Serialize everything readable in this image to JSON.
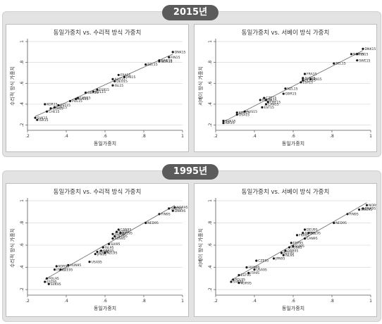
{
  "sections": [
    {
      "year_label": "2015년"
    },
    {
      "year_label": "1995년"
    }
  ],
  "chart_data": [
    {
      "type": "scatter",
      "title": "동일가중치 vs. 수리적 방식 가중치",
      "xlabel": "동일가중치",
      "ylabel": "수리적 방식 가중치",
      "xlim": [
        0.2,
        1.0
      ],
      "ylim": [
        0.15,
        1.0
      ],
      "xticks": [
        ".2",
        ".4",
        ".6",
        ".8",
        "1"
      ],
      "yticks": [
        ".2",
        ".4",
        ".6",
        ".8",
        "1"
      ],
      "grid": true,
      "fit_line": true,
      "points": [
        {
          "label": "DNK15",
          "x": 0.95,
          "y": 0.9
        },
        {
          "label": "FIN15",
          "x": 0.93,
          "y": 0.85
        },
        {
          "label": "NOR15",
          "x": 0.88,
          "y": 0.81
        },
        {
          "label": "SWE15",
          "x": 0.88,
          "y": 0.82
        },
        {
          "label": "BEL15",
          "x": 0.81,
          "y": 0.78
        },
        {
          "label": "FRA15",
          "x": 0.67,
          "y": 0.68
        },
        {
          "label": "AUT15",
          "x": 0.64,
          "y": 0.64
        },
        {
          "label": "JPN15",
          "x": 0.7,
          "y": 0.66
        },
        {
          "label": "DEU15",
          "x": 0.65,
          "y": 0.62
        },
        {
          "label": "ISL15",
          "x": 0.64,
          "y": 0.58
        },
        {
          "label": "ESP15",
          "x": 0.56,
          "y": 0.54
        },
        {
          "label": "NZL15",
          "x": 0.54,
          "y": 0.52
        },
        {
          "label": "GBR15",
          "x": 0.5,
          "y": 0.51
        },
        {
          "label": "CAN15",
          "x": 0.46,
          "y": 0.46
        },
        {
          "label": "AUS15",
          "x": 0.45,
          "y": 0.45
        },
        {
          "label": "POL15",
          "x": 0.42,
          "y": 0.43
        },
        {
          "label": "EST15",
          "x": 0.36,
          "y": 0.39
        },
        {
          "label": "CZE15",
          "x": 0.34,
          "y": 0.37
        },
        {
          "label": "USA15",
          "x": 0.32,
          "y": 0.36
        },
        {
          "label": "KOR15",
          "x": 0.29,
          "y": 0.4
        },
        {
          "label": "CHE15",
          "x": 0.3,
          "y": 0.33
        },
        {
          "label": "SVK15",
          "x": 0.24,
          "y": 0.27
        },
        {
          "label": "ISR15",
          "x": 0.25,
          "y": 0.25
        }
      ]
    },
    {
      "type": "scatter",
      "title": "동일가중치 vs. 서베이 방식 가중치",
      "xlabel": "동일가중치",
      "ylabel": "서베이 방식 가중치",
      "xlim": [
        0.2,
        1.0
      ],
      "ylim": [
        0.15,
        1.0
      ],
      "xticks": [
        ".2",
        ".4",
        ".6",
        ".8",
        "1"
      ],
      "yticks": [
        ".2",
        ".4",
        ".6",
        ".8",
        "1"
      ],
      "grid": true,
      "fit_line": true,
      "points": [
        {
          "label": "DNK15",
          "x": 0.96,
          "y": 0.93
        },
        {
          "label": "FIN15",
          "x": 0.93,
          "y": 0.88
        },
        {
          "label": "NOR15",
          "x": 0.9,
          "y": 0.88
        },
        {
          "label": "SWE15",
          "x": 0.93,
          "y": 0.82
        },
        {
          "label": "BEL15",
          "x": 0.81,
          "y": 0.79
        },
        {
          "label": "FRA15",
          "x": 0.66,
          "y": 0.69
        },
        {
          "label": "AUT15",
          "x": 0.65,
          "y": 0.65
        },
        {
          "label": "JPN15",
          "x": 0.69,
          "y": 0.64
        },
        {
          "label": "ESP15",
          "x": 0.64,
          "y": 0.61
        },
        {
          "label": "DEU15",
          "x": 0.65,
          "y": 0.63
        },
        {
          "label": "NZL15",
          "x": 0.56,
          "y": 0.55
        },
        {
          "label": "GBR15",
          "x": 0.55,
          "y": 0.5
        },
        {
          "label": "CZE15",
          "x": 0.45,
          "y": 0.46
        },
        {
          "label": "POL15",
          "x": 0.43,
          "y": 0.44
        },
        {
          "label": "ISL15",
          "x": 0.46,
          "y": 0.44
        },
        {
          "label": "CHE15",
          "x": 0.47,
          "y": 0.42
        },
        {
          "label": "CAN15",
          "x": 0.46,
          "y": 0.4
        },
        {
          "label": "EST15",
          "x": 0.44,
          "y": 0.37
        },
        {
          "label": "AUS15",
          "x": 0.35,
          "y": 0.33
        },
        {
          "label": "KOR15",
          "x": 0.31,
          "y": 0.32
        },
        {
          "label": "USA15",
          "x": 0.31,
          "y": 0.3
        },
        {
          "label": "SVK15",
          "x": 0.24,
          "y": 0.24
        },
        {
          "label": "ISR15",
          "x": 0.24,
          "y": 0.22
        }
      ]
    },
    {
      "type": "scatter",
      "title": "동일가중치 vs. 수리적 방식 가중치",
      "xlabel": "동일가중치",
      "ylabel": "수리적 방식 가중치",
      "xlim": [
        0.2,
        1.0
      ],
      "ylim": [
        0.15,
        1.0
      ],
      "xticks": [
        ".2",
        ".4",
        ".6",
        ".8",
        "1"
      ],
      "yticks": [
        ".2",
        ".4",
        ".6",
        ".8",
        "1"
      ],
      "grid": true,
      "fit_line": true,
      "points": [
        {
          "label": "NOR95",
          "x": 0.96,
          "y": 0.94
        },
        {
          "label": "SWE95",
          "x": 0.93,
          "y": 0.93
        },
        {
          "label": "DNK95",
          "x": 0.95,
          "y": 0.91
        },
        {
          "label": "FIN95",
          "x": 0.88,
          "y": 0.88
        },
        {
          "label": "NED95",
          "x": 0.81,
          "y": 0.8
        },
        {
          "label": "CAN95",
          "x": 0.67,
          "y": 0.74
        },
        {
          "label": "AUT95",
          "x": 0.66,
          "y": 0.72
        },
        {
          "label": "BEL95",
          "x": 0.68,
          "y": 0.71
        },
        {
          "label": "FRA95",
          "x": 0.64,
          "y": 0.7
        },
        {
          "label": "DEU95",
          "x": 0.65,
          "y": 0.68
        },
        {
          "label": "AUS95",
          "x": 0.64,
          "y": 0.66
        },
        {
          "label": "SUI95",
          "x": 0.62,
          "y": 0.61
        },
        {
          "label": "ISL95",
          "x": 0.59,
          "y": 0.58
        },
        {
          "label": "GBR95",
          "x": 0.58,
          "y": 0.55
        },
        {
          "label": "ESP95",
          "x": 0.56,
          "y": 0.54
        },
        {
          "label": "NZL95",
          "x": 0.6,
          "y": 0.53
        },
        {
          "label": "JPN95",
          "x": 0.55,
          "y": 0.52
        },
        {
          "label": "USA95",
          "x": 0.52,
          "y": 0.45
        },
        {
          "label": "HUN95",
          "x": 0.41,
          "y": 0.42
        },
        {
          "label": "KOR95",
          "x": 0.35,
          "y": 0.41
        },
        {
          "label": "CZE95",
          "x": 0.37,
          "y": 0.38
        },
        {
          "label": "ITA95",
          "x": 0.34,
          "y": 0.38
        },
        {
          "label": "POL95",
          "x": 0.3,
          "y": 0.3
        },
        {
          "label": "EST95",
          "x": 0.29,
          "y": 0.27
        },
        {
          "label": "SVK95",
          "x": 0.31,
          "y": 0.25
        }
      ]
    },
    {
      "type": "scatter",
      "title": "동일가중치 vs. 서베이 방식 가중치",
      "xlabel": "동일가중치",
      "ylabel": "서베이 방식 가중치",
      "xlim": [
        0.2,
        1.0
      ],
      "ylim": [
        0.15,
        1.0
      ],
      "xticks": [
        ".2",
        ".4",
        ".6",
        ".8",
        "1"
      ],
      "yticks": [
        ".2",
        ".4",
        ".6",
        ".8",
        "1"
      ],
      "grid": true,
      "fit_line": true,
      "points": [
        {
          "label": "NOR95",
          "x": 0.98,
          "y": 0.96
        },
        {
          "label": "DNK95",
          "x": 0.96,
          "y": 0.93
        },
        {
          "label": "SWE95",
          "x": 0.94,
          "y": 0.92
        },
        {
          "label": "FIN95",
          "x": 0.88,
          "y": 0.88
        },
        {
          "label": "NED95",
          "x": 0.81,
          "y": 0.8
        },
        {
          "label": "DEU95",
          "x": 0.66,
          "y": 0.74
        },
        {
          "label": "AUT95",
          "x": 0.65,
          "y": 0.71
        },
        {
          "label": "BEL95",
          "x": 0.68,
          "y": 0.71
        },
        {
          "label": "FRA95",
          "x": 0.62,
          "y": 0.69
        },
        {
          "label": "CAN95",
          "x": 0.66,
          "y": 0.66
        },
        {
          "label": "ESP95",
          "x": 0.59,
          "y": 0.62
        },
        {
          "label": "SUI95",
          "x": 0.6,
          "y": 0.59
        },
        {
          "label": "AUS95",
          "x": 0.58,
          "y": 0.58
        },
        {
          "label": "GBR95",
          "x": 0.56,
          "y": 0.55
        },
        {
          "label": "NZL95",
          "x": 0.54,
          "y": 0.53
        },
        {
          "label": "ISL95",
          "x": 0.55,
          "y": 0.51
        },
        {
          "label": "JPN95",
          "x": 0.5,
          "y": 0.48
        },
        {
          "label": "CZE95",
          "x": 0.41,
          "y": 0.46
        },
        {
          "label": "HUN95",
          "x": 0.36,
          "y": 0.4
        },
        {
          "label": "USA95",
          "x": 0.4,
          "y": 0.38
        },
        {
          "label": "ITA95",
          "x": 0.37,
          "y": 0.35
        },
        {
          "label": "EST95",
          "x": 0.32,
          "y": 0.33
        },
        {
          "label": "POL95",
          "x": 0.29,
          "y": 0.29
        },
        {
          "label": "SVK95",
          "x": 0.28,
          "y": 0.27
        },
        {
          "label": "KOR95",
          "x": 0.32,
          "y": 0.26
        }
      ]
    }
  ]
}
